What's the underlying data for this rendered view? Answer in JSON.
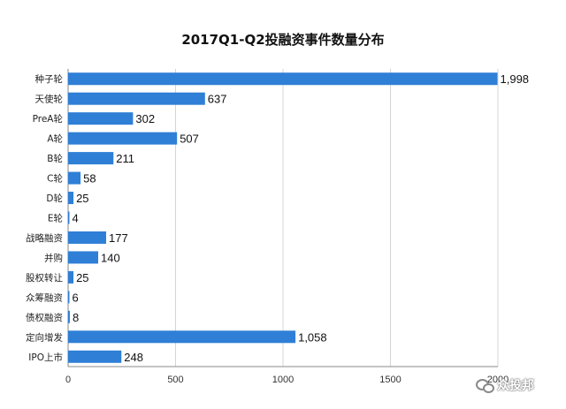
{
  "chart_data": {
    "type": "bar",
    "orientation": "horizontal",
    "title": "2017Q1-Q2投融资事件数量分布",
    "categories": [
      "种子轮",
      "天使轮",
      "PreA轮",
      "A轮",
      "B轮",
      "C轮",
      "D轮",
      "E轮",
      "战略融资",
      "并购",
      "股权转让",
      "众筹融资",
      "债权融资",
      "定向增发",
      "IPO上市"
    ],
    "values": [
      1998,
      637,
      302,
      507,
      211,
      58,
      25,
      4,
      177,
      140,
      25,
      6,
      8,
      1058,
      248
    ],
    "value_labels": [
      "1,998",
      "637",
      "302",
      "507",
      "211",
      "58",
      "25",
      "4",
      "177",
      "140",
      "25",
      "6",
      "8",
      "1,058",
      "248"
    ],
    "xticks": [
      "0",
      "500",
      "1000",
      "1500",
      "2000"
    ],
    "xtick_values": [
      0,
      500,
      1000,
      1500,
      2000
    ],
    "xlim": [
      0,
      2000
    ],
    "grid": true,
    "bar_color": "#2f7fd6"
  },
  "watermark": {
    "text": "众投邦",
    "icon": "wechat-icon"
  }
}
